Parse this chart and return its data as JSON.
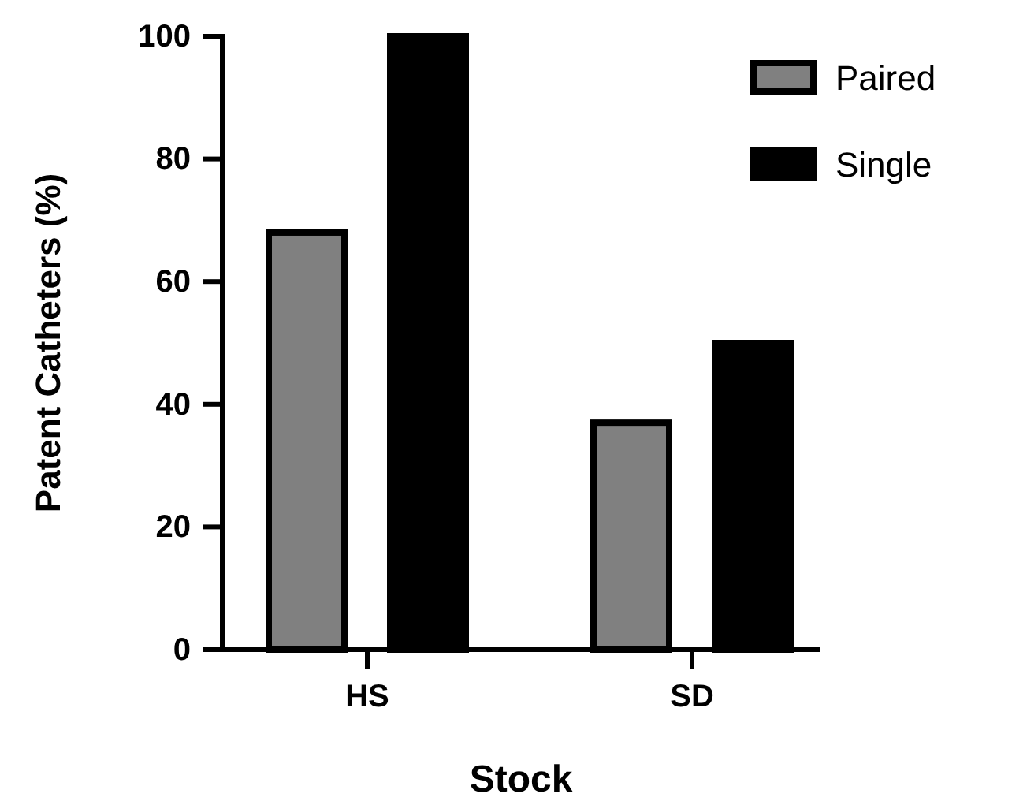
{
  "chart_data": {
    "type": "bar",
    "xlabel": "Stock",
    "ylabel": "Patent Catheters (%)",
    "categories": [
      "HS",
      "SD"
    ],
    "series": [
      {
        "name": "Paired",
        "color": "#808080",
        "values": [
          68,
          37
        ]
      },
      {
        "name": "Single",
        "color": "#000000",
        "values": [
          100,
          50
        ]
      }
    ],
    "ylim": [
      0,
      100
    ],
    "yticks": [
      0,
      20,
      40,
      60,
      80,
      100
    ],
    "grid": false,
    "legend": "top right"
  }
}
